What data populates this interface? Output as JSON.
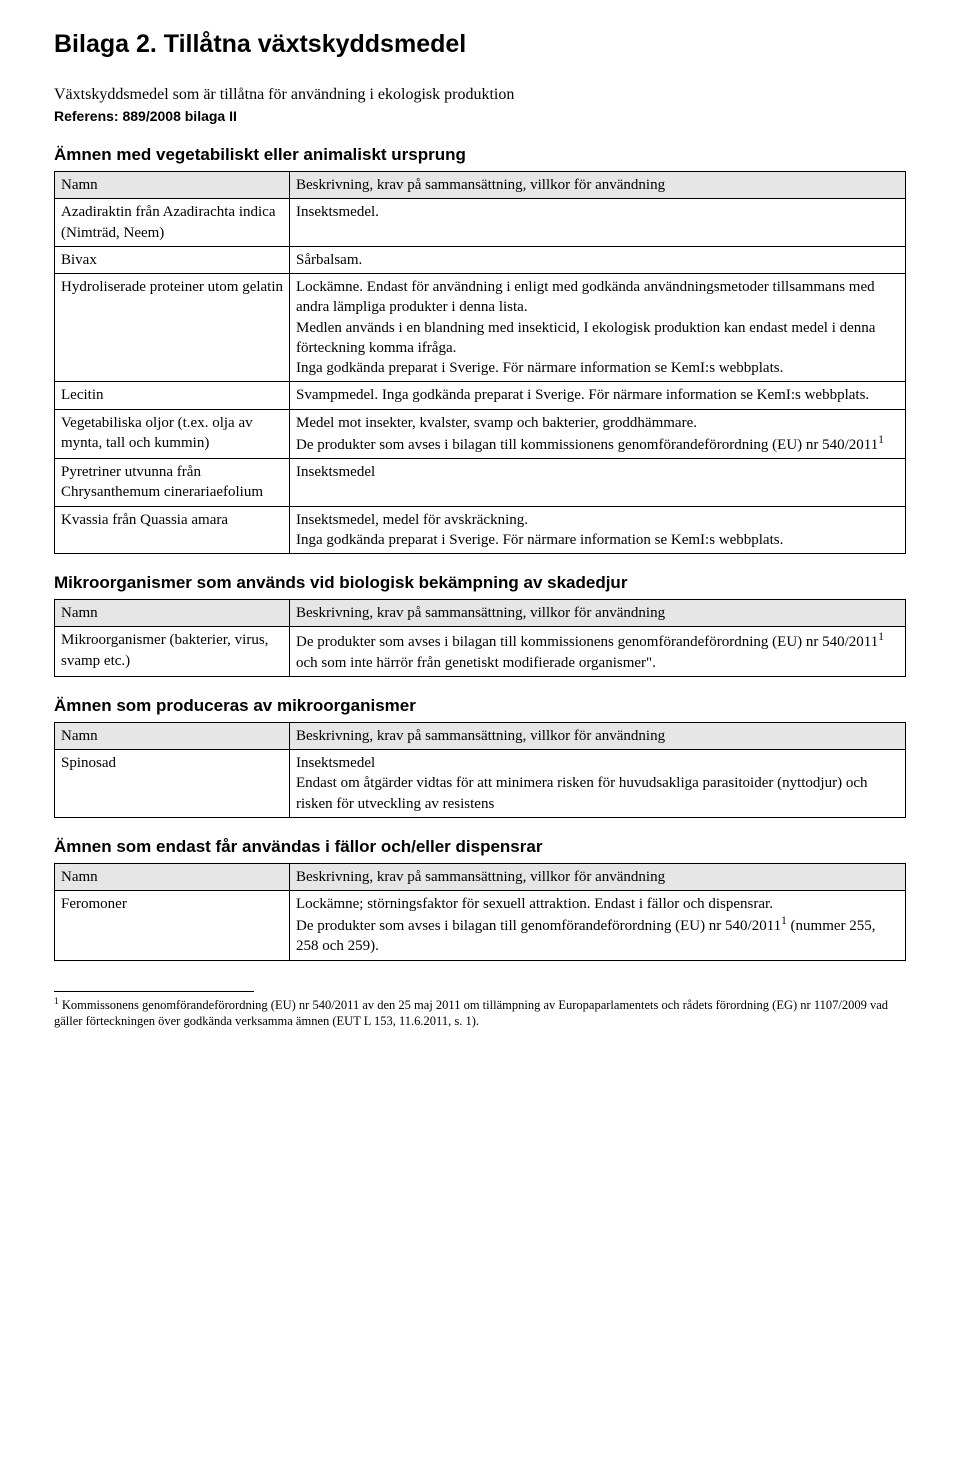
{
  "title": "Bilaga 2. Tillåtna växtskyddsmedel",
  "intro": "Växtskyddsmedel som är tillåtna för användning i ekologisk produktion",
  "reference": "Referens: 889/2008 bilaga II",
  "col_heading_name": "Namn",
  "col_heading_desc": "Beskrivning, krav på sammansättning, villkor för användning",
  "sections": {
    "s1": {
      "heading": "Ämnen med vegetabiliskt eller animaliskt ursprung",
      "rows": [
        {
          "name": "Azadiraktin från Azadirachta indica (Nimträd, Neem)",
          "desc": "Insektsmedel."
        },
        {
          "name": "Bivax",
          "desc": "Sårbalsam."
        },
        {
          "name": "Hydroliserade proteiner utom gelatin",
          "desc": "Lockämne. Endast för användning i enligt med godkända användningsmetoder tillsammans med andra lämpliga produkter i denna lista.\nMedlen används i en blandning med insekticid, I ekologisk produktion kan endast medel i denna förteckning komma ifråga.\nInga godkända preparat i Sverige. För närmare information se KemI:s webbplats."
        },
        {
          "name": "Lecitin",
          "desc": "Svampmedel. Inga godkända preparat i Sverige. För närmare information se KemI:s webbplats."
        },
        {
          "name": "Vegetabiliska oljor (t.ex. olja av mynta, tall och kummin)",
          "desc_html": "Medel mot insekter, kvalster, svamp och bakterier, groddhämmare.<br>De produkter som avses i bilagan till kommissionens genomförandeförordning (EU) nr 540/2011<sup>1</sup>"
        },
        {
          "name": "Pyretriner utvunna från Chrysanthemum cinerariaefolium",
          "desc": "Insektsmedel"
        },
        {
          "name": "Kvassia från Quassia amara",
          "desc": "Insektsmedel, medel för avskräckning.\nInga godkända preparat i Sverige. För närmare information se KemI:s webbplats."
        }
      ]
    },
    "s2": {
      "heading": "Mikroorganismer som används vid biologisk bekämpning av skadedjur",
      "rows": [
        {
          "name": "Mikroorganismer (bakterier, virus, svamp etc.)",
          "desc_html": "De produkter som avses i bilagan till kommissionens genomförandeförordning (EU) nr 540/2011<sup>1</sup> och som inte härrör från genetiskt modifierade organismer\"."
        }
      ]
    },
    "s3": {
      "heading": "Ämnen som produceras av mikroorganismer",
      "rows": [
        {
          "name": "Spinosad",
          "desc": "Insektsmedel\nEndast om åtgärder vidtas för att minimera risken för huvudsakliga parasitoider (nyttodjur) och risken för utveckling av resistens"
        }
      ]
    },
    "s4": {
      "heading": "Ämnen som endast får användas i fällor och/eller dispensrar",
      "rows": [
        {
          "name": "Feromoner",
          "desc_html": "Lockämne; störningsfaktor för sexuell attraktion. Endast i fällor och dispensrar.<br>De produkter som avses i bilagan till genomförandeförordning (EU) nr 540/2011<sup>1</sup> (nummer 255, 258 och 259)."
        }
      ]
    }
  },
  "footnote_html": "<sup>1</sup> Kommissonens genomförandeförordning (EU) nr 540/2011 av den 25 maj 2011 om tillämpning av Europaparlamentets och rådets förordning (EG) nr 1107/2009 vad gäller förteckningen över godkända verksamma ämnen (EUT L 153, 11.6.2011, s. 1)."
}
